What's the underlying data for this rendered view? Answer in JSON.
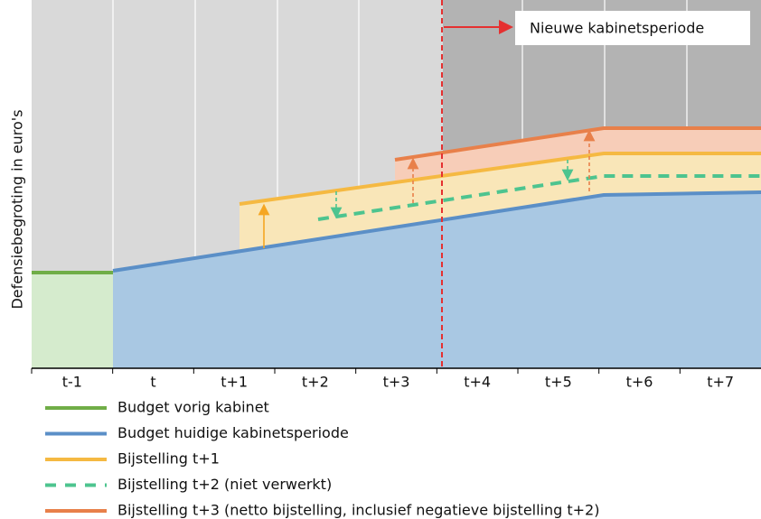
{
  "y_axis_label": "Defensiebegroting in euro's",
  "categories": [
    "t-1",
    "t",
    "t+1",
    "t+2",
    "t+3",
    "t+4",
    "t+5",
    "t+6",
    "t+7"
  ],
  "annotation": "Nieuwe kabinetsperiode",
  "legend": [
    {
      "label": "Budget vorig kabinet"
    },
    {
      "label": "Budget huidige kabinetsperiode"
    },
    {
      "label": "Bijstelling t+1"
    },
    {
      "label": "Bijstelling t+2 (niet verwerkt)"
    },
    {
      "label": "Bijstelling t+3 (netto bijstelling, inclusief negatieve bijstelling t+2)"
    }
  ]
}
